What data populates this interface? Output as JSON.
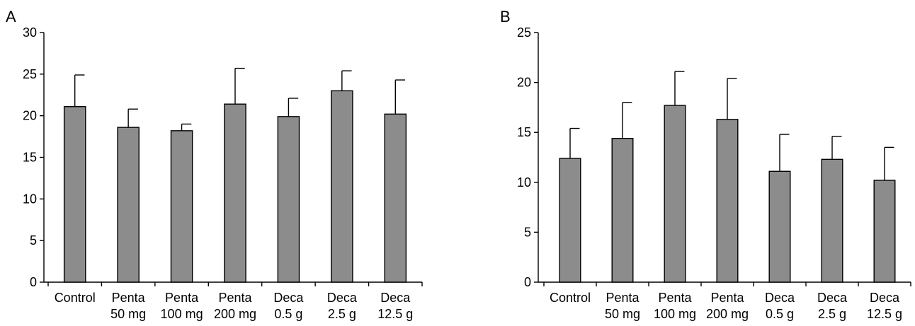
{
  "chart_data": [
    {
      "type": "bar",
      "panel_label": "A",
      "title": "",
      "xlabel": "",
      "ylabel": "",
      "ylim": [
        0,
        30
      ],
      "yticks": [
        0,
        5,
        10,
        15,
        20,
        25,
        30
      ],
      "grid": false,
      "bar_color": "#8c8c8c",
      "categories": [
        [
          "Control"
        ],
        [
          "Penta",
          "50 mg"
        ],
        [
          "Penta",
          "100 mg"
        ],
        [
          "Penta",
          "200 mg"
        ],
        [
          "Deca",
          "0.5 g"
        ],
        [
          "Deca",
          "2.5 g"
        ],
        [
          "Deca",
          "12.5 g"
        ]
      ],
      "values": [
        21.1,
        18.6,
        18.2,
        21.4,
        19.9,
        23.0,
        20.2
      ],
      "error_upper": [
        24.9,
        20.8,
        19.0,
        25.7,
        22.1,
        25.4,
        24.3
      ]
    },
    {
      "type": "bar",
      "panel_label": "B",
      "title": "",
      "xlabel": "",
      "ylabel": "",
      "ylim": [
        0,
        25
      ],
      "yticks": [
        0,
        5,
        10,
        15,
        20,
        25
      ],
      "grid": false,
      "bar_color": "#8c8c8c",
      "categories": [
        [
          "Control"
        ],
        [
          "Penta",
          "50 mg"
        ],
        [
          "Penta",
          "100 mg"
        ],
        [
          "Penta",
          "200 mg"
        ],
        [
          "Deca",
          "0.5 g"
        ],
        [
          "Deca",
          "2.5 g"
        ],
        [
          "Deca",
          "12.5 g"
        ]
      ],
      "values": [
        12.4,
        14.4,
        17.7,
        16.3,
        11.1,
        12.3,
        10.2
      ],
      "error_upper": [
        15.4,
        18.0,
        21.1,
        20.4,
        14.8,
        14.6,
        13.5
      ]
    }
  ]
}
